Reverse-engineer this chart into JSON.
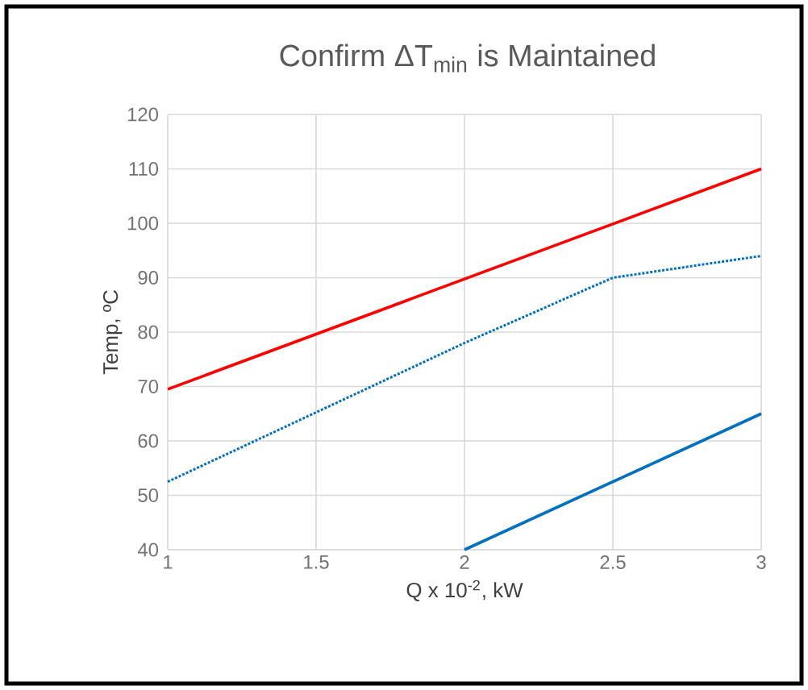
{
  "chart_data": {
    "type": "line",
    "title": "Confirm ΔT$_{min}$ is Maintained",
    "xlabel": "Q x 10$^{-2}$, kW",
    "ylabel": "Temp, ºC",
    "xlim": [
      1,
      3
    ],
    "ylim": [
      40,
      120
    ],
    "xticks": [
      1,
      1.5,
      2,
      2.5,
      3
    ],
    "yticks": [
      40,
      50,
      60,
      70,
      80,
      90,
      100,
      110,
      120
    ],
    "grid": true,
    "series": [
      {
        "color": "#ff0000",
        "x": [
          1,
          3
        ],
        "values": [
          69.5,
          110
        ],
        "line_style": "solid"
      },
      {
        "color": "#0070c0",
        "x": [
          1,
          2,
          2.5,
          3
        ],
        "values": [
          52.5,
          78,
          90,
          94
        ],
        "line_style": "dotted"
      },
      {
        "color": "#0070c0",
        "x": [
          2,
          2.5,
          3
        ],
        "values": [
          40,
          52.5,
          65
        ],
        "line_style": "solid"
      }
    ]
  }
}
